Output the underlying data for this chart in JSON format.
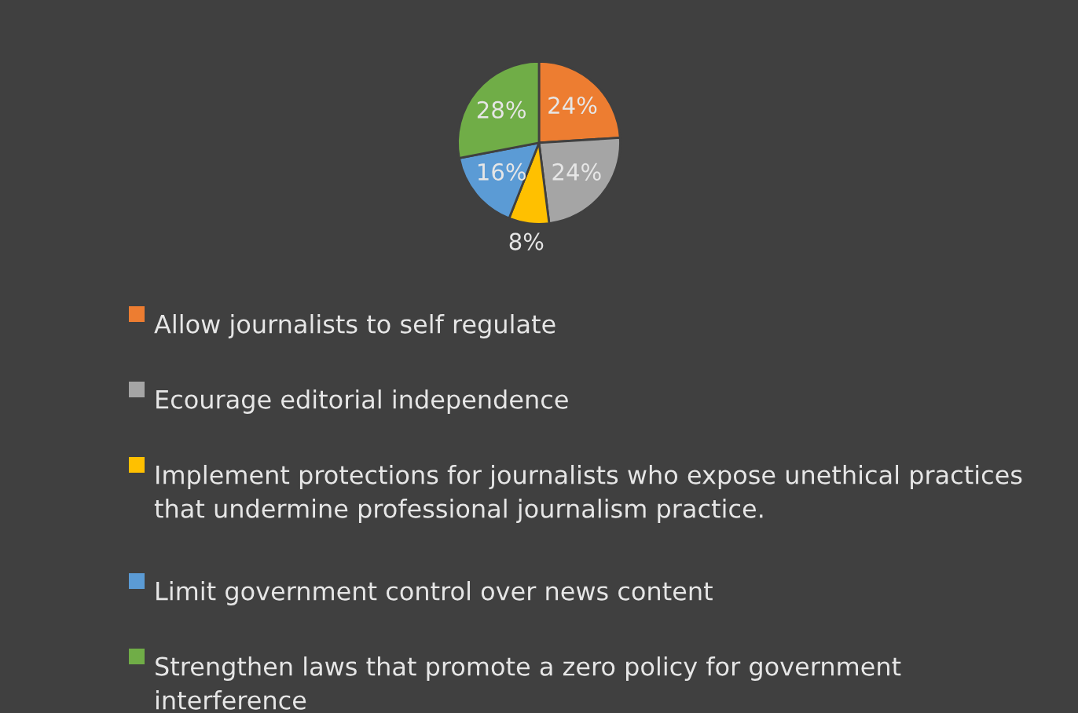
{
  "chart_data": {
    "type": "pie",
    "categories": [
      "Allow journalists to self regulate",
      "Ecourage editorial independence",
      "Implement protections for journalists who expose unethical practices that undermine professional journalism practice.",
      "Limit government control over news content",
      "Strengthen laws that promote a zero policy for government interference"
    ],
    "values": [
      24,
      24,
      8,
      16,
      28
    ],
    "value_labels": [
      "24%",
      "24%",
      "8%",
      "16%",
      "28%"
    ],
    "colors": [
      "#ed7d31",
      "#a5a5a5",
      "#ffc000",
      "#5b9bd5",
      "#70ad47"
    ],
    "legend": "bottom"
  }
}
